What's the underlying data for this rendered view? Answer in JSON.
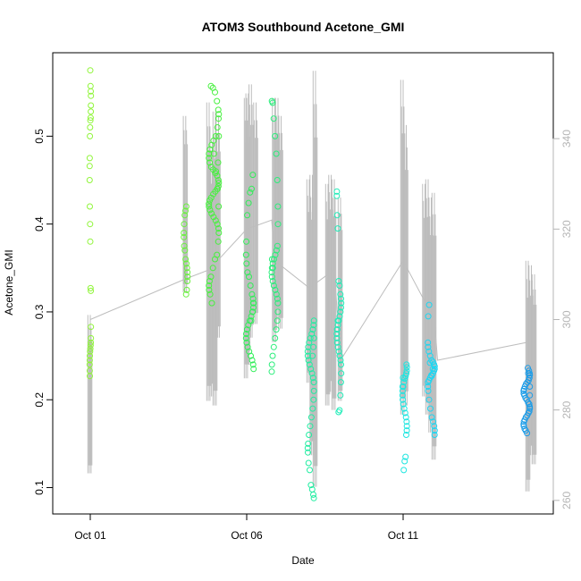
{
  "chart_data": {
    "type": "scatter",
    "title": "ATOM3 Southbound Acetone_GMI",
    "xlabel": "Date",
    "ylabel": "Acetone_GMI",
    "x_unit": "days from Oct 01",
    "xlim": [
      -1.2,
      14.8
    ],
    "ylim": [
      0.07,
      0.595
    ],
    "y_ticks": [
      0.1,
      0.2,
      0.3,
      0.4,
      0.5
    ],
    "x_ticks": [
      {
        "value": 0,
        "label": "Oct 01"
      },
      {
        "value": 5,
        "label": "Oct 06"
      },
      {
        "value": 10,
        "label": "Oct 11"
      }
    ],
    "secondary_y": {
      "lim": [
        257,
        359
      ],
      "ticks": [
        260,
        280,
        300,
        320,
        340
      ],
      "color": "#bdbdbd",
      "segments": [
        {
          "x": 0.0,
          "baseline": 300,
          "low": 266,
          "high": 301
        },
        {
          "x": 3.05,
          "baseline": 309,
          "low": 307,
          "high": 323
        },
        {
          "x": 3.05,
          "baseline": 309,
          "low": 306,
          "high": 345
        },
        {
          "x": 3.8,
          "baseline": 309,
          "low": 282,
          "high": 348
        },
        {
          "x": 3.9,
          "baseline": 309,
          "low": 283,
          "high": 339
        },
        {
          "x": 4.0,
          "baseline": 309,
          "low": 281,
          "high": 346
        },
        {
          "x": 4.1,
          "baseline": 309,
          "low": 296,
          "high": 345
        },
        {
          "x": 5.0,
          "baseline": 318,
          "low": 287,
          "high": 349
        },
        {
          "x": 5.05,
          "baseline": 318,
          "low": 290,
          "high": 350
        },
        {
          "x": 5.15,
          "baseline": 318,
          "low": 296,
          "high": 352
        },
        {
          "x": 5.3,
          "baseline": 318,
          "low": 299,
          "high": 348
        },
        {
          "x": 5.9,
          "baseline": 320,
          "low": 295,
          "high": 349
        },
        {
          "x": 6.0,
          "baseline": 320,
          "low": 300,
          "high": 349
        },
        {
          "x": 6.1,
          "baseline": 320,
          "low": 298,
          "high": 345
        },
        {
          "x": 7.0,
          "baseline": 303,
          "low": 286,
          "high": 331
        },
        {
          "x": 7.1,
          "baseline": 303,
          "low": 270,
          "high": 332
        },
        {
          "x": 7.2,
          "baseline": 303,
          "low": 263,
          "high": 355
        },
        {
          "x": 7.6,
          "baseline": 306,
          "low": 281,
          "high": 330
        },
        {
          "x": 7.7,
          "baseline": 306,
          "low": 284,
          "high": 332
        },
        {
          "x": 7.8,
          "baseline": 306,
          "low": 280,
          "high": 331
        },
        {
          "x": 8.0,
          "baseline": 289,
          "low": 282,
          "high": 327
        },
        {
          "x": 10.0,
          "baseline": 316,
          "low": 279,
          "high": 353
        },
        {
          "x": 10.1,
          "baseline": 316,
          "low": 281,
          "high": 343
        },
        {
          "x": 10.7,
          "baseline": 293,
          "low": 283,
          "high": 330
        },
        {
          "x": 10.8,
          "baseline": 293,
          "low": 279,
          "high": 331
        },
        {
          "x": 10.9,
          "baseline": 293,
          "low": 275,
          "high": 327
        },
        {
          "x": 11.0,
          "baseline": 293,
          "low": 269,
          "high": 328
        },
        {
          "x": 14.0,
          "baseline": 298,
          "low": 262,
          "high": 313
        },
        {
          "x": 14.1,
          "baseline": 298,
          "low": 270,
          "high": 312
        },
        {
          "x": 14.2,
          "baseline": 298,
          "low": 268,
          "high": 310
        }
      ],
      "connector": [
        [
          0.0,
          300
        ],
        [
          3.05,
          309
        ],
        [
          3.8,
          311
        ],
        [
          5.0,
          320
        ],
        [
          5.8,
          322
        ],
        [
          5.9,
          313
        ],
        [
          7.0,
          307
        ],
        [
          7.8,
          311
        ],
        [
          8.0,
          291
        ],
        [
          10.0,
          313
        ],
        [
          11.0,
          300
        ],
        [
          11.1,
          291
        ],
        [
          14.0,
          295
        ]
      ]
    },
    "groups": [
      {
        "x_center": 0.0,
        "x_jitter": 0.02,
        "color": "#90f53a",
        "values": [
          0.575,
          0.557,
          0.551,
          0.546,
          0.535,
          0.528,
          0.521,
          0.518,
          0.51,
          0.5,
          0.475,
          0.466,
          0.45,
          0.42,
          0.4,
          0.38,
          0.327,
          0.324,
          0.283,
          0.27,
          0.265,
          0.262,
          0.258,
          0.255,
          0.25,
          0.245,
          0.24,
          0.233,
          0.227
        ]
      },
      {
        "x_center": 3.05,
        "x_jitter": 0.06,
        "color": "#6af03f",
        "values": [
          0.42,
          0.415,
          0.41,
          0.4,
          0.39,
          0.385,
          0.375,
          0.37,
          0.36,
          0.355,
          0.35,
          0.345,
          0.34,
          0.335,
          0.325,
          0.32
        ]
      },
      {
        "x_center": 3.95,
        "x_jitter": 0.16,
        "color": "#47f03f",
        "values": [
          0.557,
          0.555,
          0.55,
          0.54,
          0.53,
          0.525,
          0.52,
          0.51,
          0.5,
          0.495,
          0.49,
          0.485,
          0.48,
          0.475,
          0.47,
          0.465,
          0.462,
          0.458,
          0.455,
          0.45,
          0.447,
          0.443,
          0.44,
          0.437,
          0.434,
          0.43,
          0.427,
          0.423,
          0.42,
          0.416,
          0.412,
          0.408,
          0.404,
          0.4,
          0.395,
          0.39,
          0.38,
          0.365,
          0.36,
          0.35,
          0.34,
          0.335,
          0.33,
          0.325,
          0.32,
          0.31,
          0.48,
          0.46,
          0.44,
          0.42,
          0.5,
          0.47
        ]
      },
      {
        "x_center": 5.1,
        "x_jitter": 0.12,
        "color": "#30ee58",
        "values": [
          0.456,
          0.44,
          0.436,
          0.424,
          0.41,
          0.38,
          0.365,
          0.355,
          0.345,
          0.34,
          0.33,
          0.32,
          0.315,
          0.31,
          0.305,
          0.3,
          0.295,
          0.29,
          0.285,
          0.28,
          0.275,
          0.27,
          0.265,
          0.26,
          0.255,
          0.25,
          0.245,
          0.24,
          0.235,
          0.31,
          0.3,
          0.29
        ]
      },
      {
        "x_center": 5.9,
        "x_jitter": 0.1,
        "color": "#2aee7a",
        "values": [
          0.54,
          0.538,
          0.52,
          0.5,
          0.48,
          0.45,
          0.42,
          0.4,
          0.375,
          0.37,
          0.365,
          0.36,
          0.355,
          0.35,
          0.345,
          0.34,
          0.335,
          0.33,
          0.325,
          0.32,
          0.315,
          0.31,
          0.3,
          0.29,
          0.28,
          0.27,
          0.26,
          0.25,
          0.24,
          0.232,
          0.36,
          0.35
        ]
      },
      {
        "x_center": 7.05,
        "x_jitter": 0.1,
        "color": "#20eda1",
        "values": [
          0.29,
          0.285,
          0.28,
          0.275,
          0.27,
          0.265,
          0.26,
          0.255,
          0.25,
          0.245,
          0.24,
          0.235,
          0.23,
          0.225,
          0.22,
          0.21,
          0.2,
          0.19,
          0.18,
          0.17,
          0.16,
          0.15,
          0.145,
          0.14,
          0.128,
          0.12,
          0.103,
          0.098,
          0.092,
          0.088,
          0.27,
          0.26,
          0.25
        ]
      },
      {
        "x_center": 7.95,
        "x_jitter": 0.07,
        "color": "#1eedb8",
        "values": [
          0.437,
          0.432,
          0.41,
          0.395,
          0.335,
          0.33,
          0.32,
          0.315,
          0.31,
          0.305,
          0.3,
          0.295,
          0.29,
          0.285,
          0.28,
          0.275,
          0.27,
          0.265,
          0.26,
          0.255,
          0.25,
          0.245,
          0.24,
          0.23,
          0.22,
          0.205,
          0.188,
          0.186,
          0.29,
          0.28
        ]
      },
      {
        "x_center": 10.05,
        "x_jitter": 0.07,
        "color": "#1ee6e0",
        "values": [
          0.24,
          0.237,
          0.233,
          0.23,
          0.227,
          0.224,
          0.22,
          0.215,
          0.21,
          0.205,
          0.2,
          0.195,
          0.19,
          0.185,
          0.18,
          0.175,
          0.17,
          0.165,
          0.16,
          0.135,
          0.13,
          0.12,
          0.225,
          0.215
        ]
      },
      {
        "x_center": 10.9,
        "x_jitter": 0.11,
        "color": "#1dd6f2",
        "values": [
          0.308,
          0.295,
          0.265,
          0.26,
          0.255,
          0.25,
          0.245,
          0.243,
          0.24,
          0.238,
          0.235,
          0.233,
          0.23,
          0.227,
          0.225,
          0.222,
          0.22,
          0.215,
          0.21,
          0.2,
          0.19,
          0.18,
          0.175,
          0.17,
          0.165,
          0.16,
          0.24,
          0.235,
          0.228,
          0.242
        ]
      },
      {
        "x_center": 13.95,
        "x_jitter": 0.1,
        "color": "#1b9ce8",
        "values": [
          0.236,
          0.233,
          0.23,
          0.228,
          0.225,
          0.222,
          0.22,
          0.218,
          0.215,
          0.212,
          0.21,
          0.207,
          0.205,
          0.202,
          0.2,
          0.197,
          0.195,
          0.192,
          0.19,
          0.187,
          0.185,
          0.182,
          0.18,
          0.177,
          0.175,
          0.172,
          0.17,
          0.167,
          0.165,
          0.162,
          0.23,
          0.225,
          0.215,
          0.205,
          0.195
        ]
      }
    ]
  }
}
